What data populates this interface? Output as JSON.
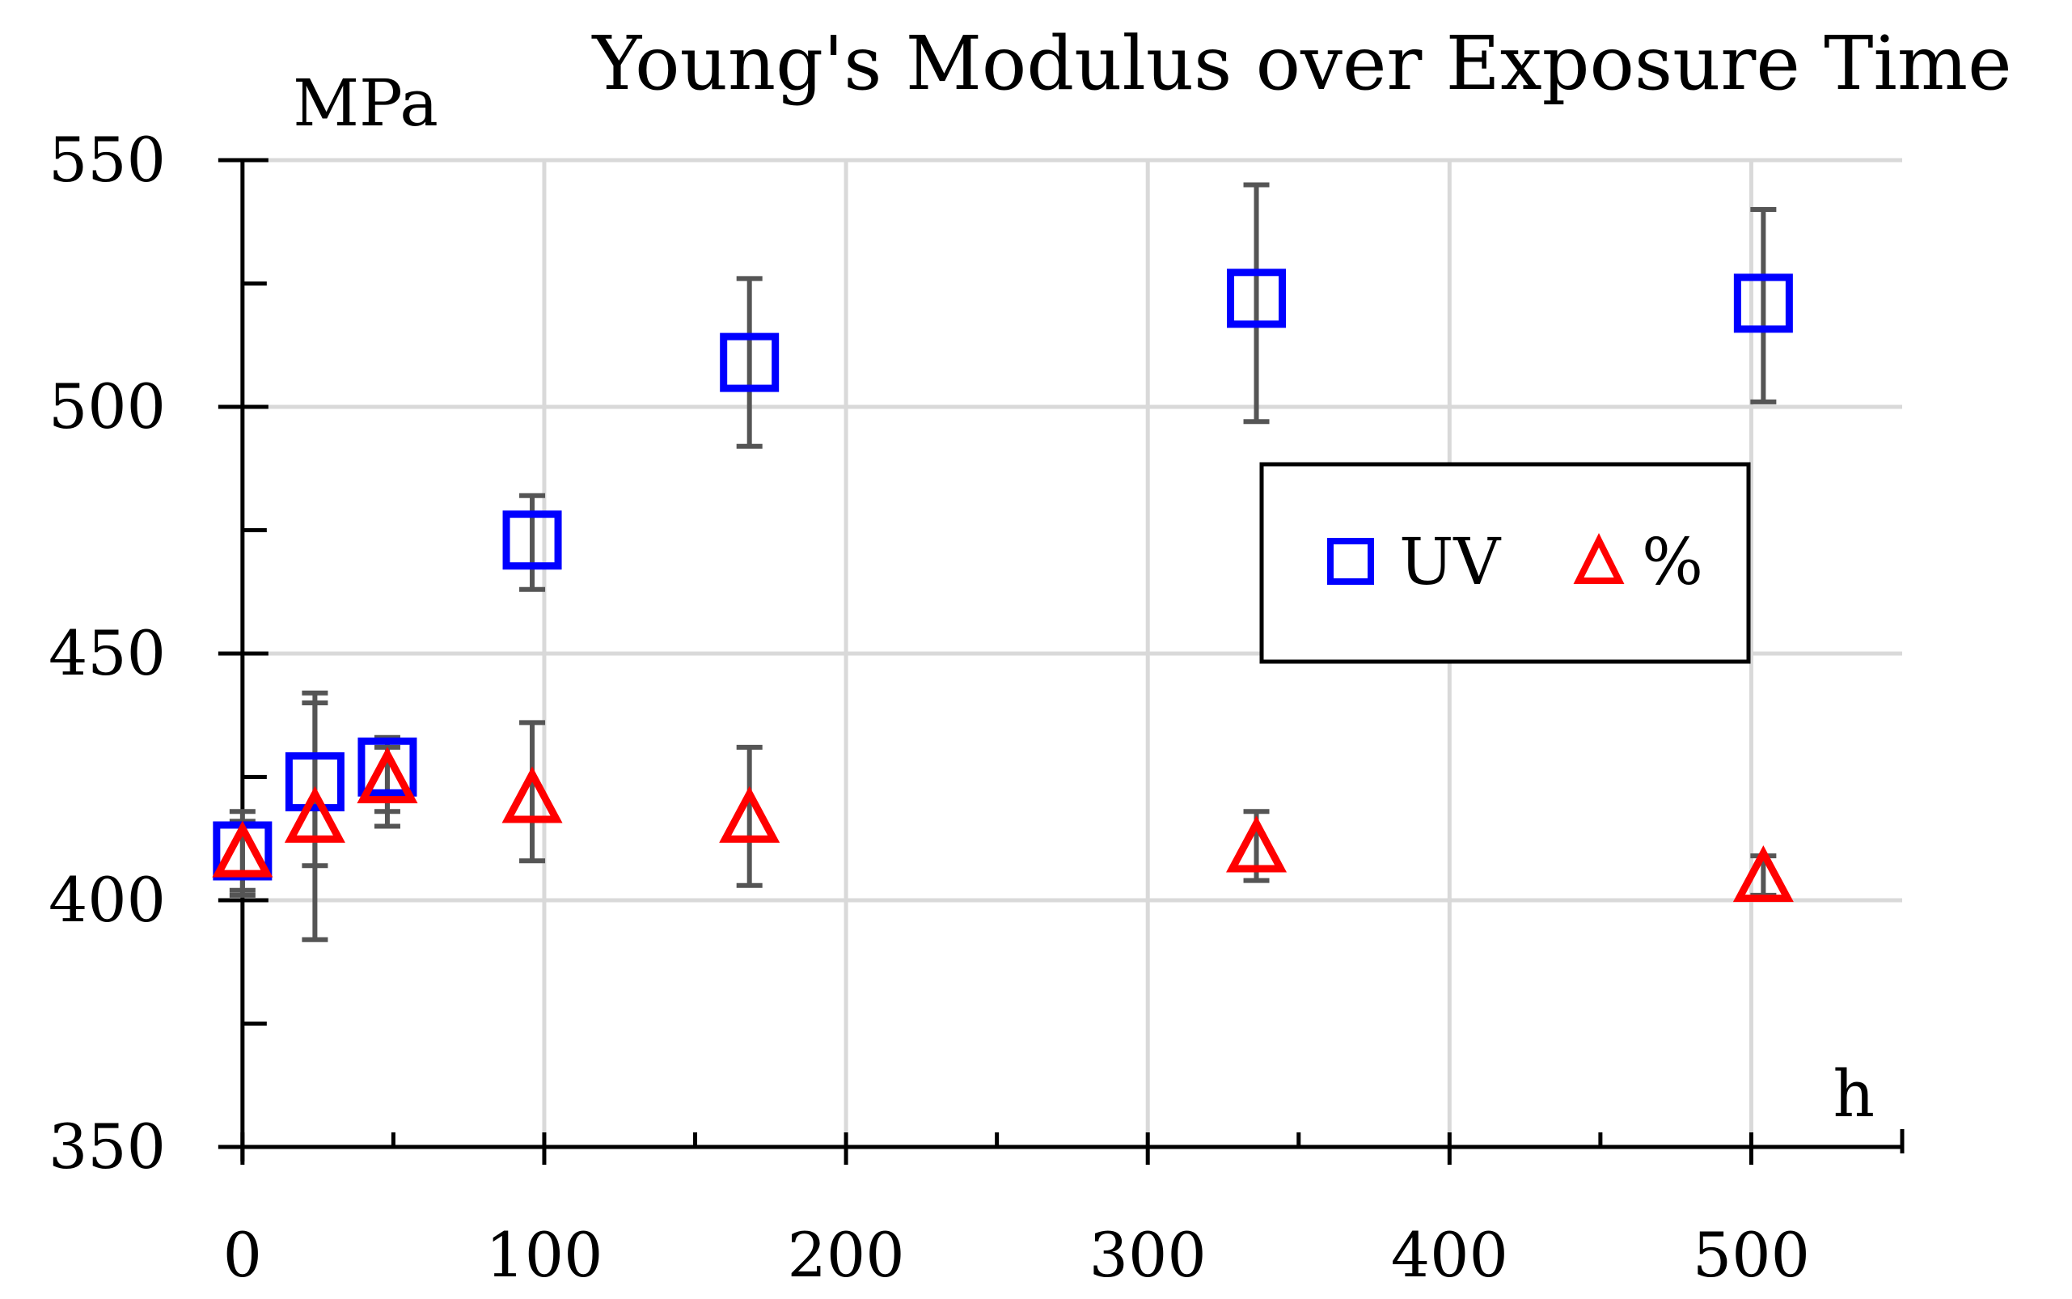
{
  "chart_data": {
    "type": "scatter",
    "title": "Young's Modulus over Exposure Time",
    "ylabel": "MPa",
    "xlabel": "h",
    "xlim": [
      -8,
      550
    ],
    "ylim": [
      350,
      550
    ],
    "x_ticks": [
      0,
      100,
      200,
      300,
      400,
      500
    ],
    "y_ticks": [
      350,
      400,
      450,
      500,
      550
    ],
    "grid": true,
    "legend_position": "center-right",
    "series": [
      {
        "name": "UV",
        "marker": "square",
        "color": "#0000ff",
        "points": [
          {
            "x": 0,
            "y": 410,
            "err_low": 401,
            "err_high": 418
          },
          {
            "x": 24,
            "y": 424,
            "err_low": 392,
            "err_high": 442
          },
          {
            "x": 48,
            "y": 427,
            "err_low": 418,
            "err_high": 433
          },
          {
            "x": 96,
            "y": 473,
            "err_low": 463,
            "err_high": 482
          },
          {
            "x": 168,
            "y": 509,
            "err_low": 492,
            "err_high": 526
          },
          {
            "x": 336,
            "y": 522,
            "err_low": 497,
            "err_high": 545
          },
          {
            "x": 504,
            "y": 521,
            "err_low": 501,
            "err_high": 540
          }
        ]
      },
      {
        "name": "%",
        "marker": "triangle",
        "color": "#ff0000",
        "points": [
          {
            "x": 0,
            "y": 409,
            "err_low": 402,
            "err_high": 416
          },
          {
            "x": 24,
            "y": 416,
            "err_low": 407,
            "err_high": 440
          },
          {
            "x": 48,
            "y": 424,
            "err_low": 415,
            "err_high": 431
          },
          {
            "x": 96,
            "y": 420,
            "err_low": 408,
            "err_high": 436
          },
          {
            "x": 168,
            "y": 416,
            "err_low": 403,
            "err_high": 431
          },
          {
            "x": 336,
            "y": 410,
            "err_low": 404,
            "err_high": 418
          },
          {
            "x": 504,
            "y": 404,
            "err_low": 401,
            "err_high": 409
          }
        ]
      }
    ]
  }
}
